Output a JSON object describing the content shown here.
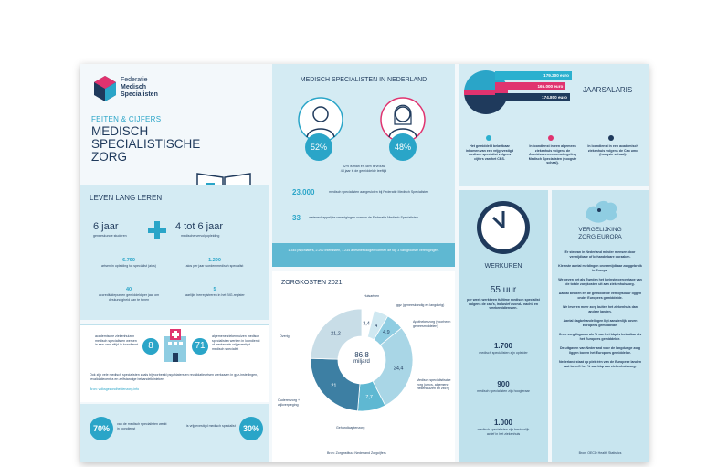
{
  "logo": {
    "line1": "Federatie",
    "line2": "Medisch",
    "line3": "Specialisten"
  },
  "title": {
    "kicker": "FEITEN & CIJFERS",
    "line1": "MEDISCH",
    "line2": "SPECIALISTISCHE",
    "line3": "ZORG"
  },
  "nederland": {
    "title": "MEDISCH SPECIALISTEN IN NEDERLAND",
    "male_pct": "52%",
    "female_pct": "48%",
    "gender_note": "52% is man en 48% is vrouw",
    "age_note": "48 jaar is de gemiddelde leeftijd",
    "stat1_num": "23.000",
    "stat1_text": "medisch specialisten aangesloten bij Federatie Medisch Specialisten",
    "stat2_num": "33",
    "stat2_text": "wetenschappelijke verenigingen vormen de Federatie Medisch Specialisten",
    "band_text": "1.345 psychiaters, 2.292 internisten, 1.234 anesthesiologen vormen de top 3 van grootste verenigingen."
  },
  "salaris": {
    "title": "JAARSALARIS",
    "bars": [
      {
        "label": "179.200 euro",
        "color": "#2bb0cf",
        "value": 179200
      },
      {
        "label": "165.000 euro",
        "color": "#e0336f",
        "value": 165000
      },
      {
        "label": "174.800 euro",
        "color": "#1f3a5c",
        "value": 174800
      }
    ],
    "notes": [
      "Het gemiddeld belastbaar inkomen van een vrijgevestigd medisch specialist volgens cijfers van het CBS.",
      "In loondienst in een algemeen ziekenhuis volgens de Arbeidsovereenkomstregeling Medisch Specialisten (hoogste schaal).",
      "In loondienst in een academisch ziekenhuis volgens de Cao umc (hoogste schaal)."
    ]
  },
  "leren": {
    "title": "LEVEN LANG LEREN",
    "a_num": "6 jaar",
    "a_text": "geneeskunde studeren",
    "b_num": "4 tot 6 jaar",
    "b_text": "medische vervolgopleiding",
    "c_num": "6.790",
    "c_text": "artsen in opleiding tot specialist (aios)",
    "d_num": "1.290",
    "d_text": "aios per jaar worden medisch specialist",
    "e_num": "40",
    "e_text": "accreditatiepunten gemiddeld per jaar om deskundigheid aan te tonen",
    "f_num": "5",
    "f_text": "jaarlijks herregistreren in het BIG-register"
  },
  "zkh": {
    "left_text": "academische ziekenhuizen medisch specialisten werken in een umc altijd in loondienst",
    "left_num": "8",
    "right_num": "71",
    "right_text": "algemene ziekenhuizen medisch specialisten werken in loondienst of werken als vrijgevestigd medisch specialist",
    "note": "Ook zijn vele medisch specialisten zoals bijvoorbeeld psychiaters en revalidatieartsen werkzaam in ggz-instellingen, revalidatiecentra en zelfstandige behandelklinieken.",
    "source": "Bron: volksgezondheidenzorg.info"
  },
  "pct": {
    "a": "70%",
    "a_text": "van de medisch specialisten werkt in loondienst",
    "b": "30%",
    "b_text": "is vrijgevestigd medisch specialist"
  },
  "zorgkosten": {
    "title": "ZORGKOSTEN 2021",
    "center_num": "86,8",
    "center_unit": "miljard",
    "labels": {
      "huisartsen": "Huisartsen",
      "ggz": "ggz (geneeskundig en langdurig)",
      "apotheken": "Apothekenzorg (voorheen geneesmiddelen)",
      "msz": "Medisch specialistische zorg (umcs, algemene ziekenhuizen en zbc's)",
      "ouderen": "Ouderenzorg + wijkverpleging",
      "gehandicapten": "Gehandicaptenzorg",
      "overig": "Overig"
    },
    "source": "Bron: Zorginstituut Nederland Zorgcijfers",
    "chart_data": {
      "type": "pie",
      "values": [
        3.4,
        4,
        4.9,
        24.4,
        7.7,
        21,
        21.2
      ],
      "categories": [
        "Huisartsen",
        "ggz",
        "Apothekenzorg",
        "Medisch specialistische zorg",
        "Gehandicaptenzorg",
        "Ouderenzorg + wijkverpleging",
        "Overig"
      ],
      "labels": [
        "3,4",
        "4",
        "4,9",
        "24,4",
        "7,7",
        "21",
        "21,2"
      ],
      "colors": [
        "#ffffff",
        "#cfe8f1",
        "#8fcde2",
        "#a9d6e6",
        "#5fb8d2",
        "#3d7fa3",
        "#c8dde7"
      ]
    }
  },
  "werkuren": {
    "title": "WERKUREN",
    "hours": "55 uur",
    "hours_text": "per week werkt een fulltime medisch specialist volgens de cao's, inclusief avond-, nacht- en weekenddiensten.",
    "s1_num": "1.700",
    "s1_text": "medisch specialisten zijn opleider",
    "s2_num": "900",
    "s2_text": "medisch specialisten zijn hoogleraar",
    "s3_num": "1.000",
    "s3_text": "medisch specialisten zijn bestuurlijk actief in het ziekenhuis"
  },
  "europa": {
    "title1": "VERGELIJKING",
    "title2": "ZORG EUROPA",
    "items": [
      "Er stervan in Nederland minder mensen door vermijdbare of behandelbare oorzaken.",
      "Kleinste aantal meldingen onvermijdbaar zorggebruik in Europa.",
      "We geven net als Zweden het kleinste percentage van de totale zorgkosten uit aan ziekenhuiszorg.",
      "Aantal bedden en de gemiddelde verblijfsduur liggen onder Europees gemiddelde.",
      "We leveren meer zorg buiten het ziekenhuis dan andere landen.",
      "Aantal dagbehandelingen ligt aanzienlijk boven Europees gemiddelde.",
      "Onze zorgdbgasen als % van het bbp is betaalbar als het Europees gemiddelde.",
      "De uitgaven van Nederland voor de langdurige zorg liggen boven het Europees gemiddelde.",
      "Nederland staat op plek één van de Europese landen wat betreft het % van bbp aan ziekenhuisoorg."
    ],
    "source": "Bron: OECD Health Statistics"
  },
  "colors": {
    "navy": "#1f3a5c",
    "teal": "#2aa5c8",
    "pink": "#e0336f",
    "light": "#d4ebf3"
  }
}
